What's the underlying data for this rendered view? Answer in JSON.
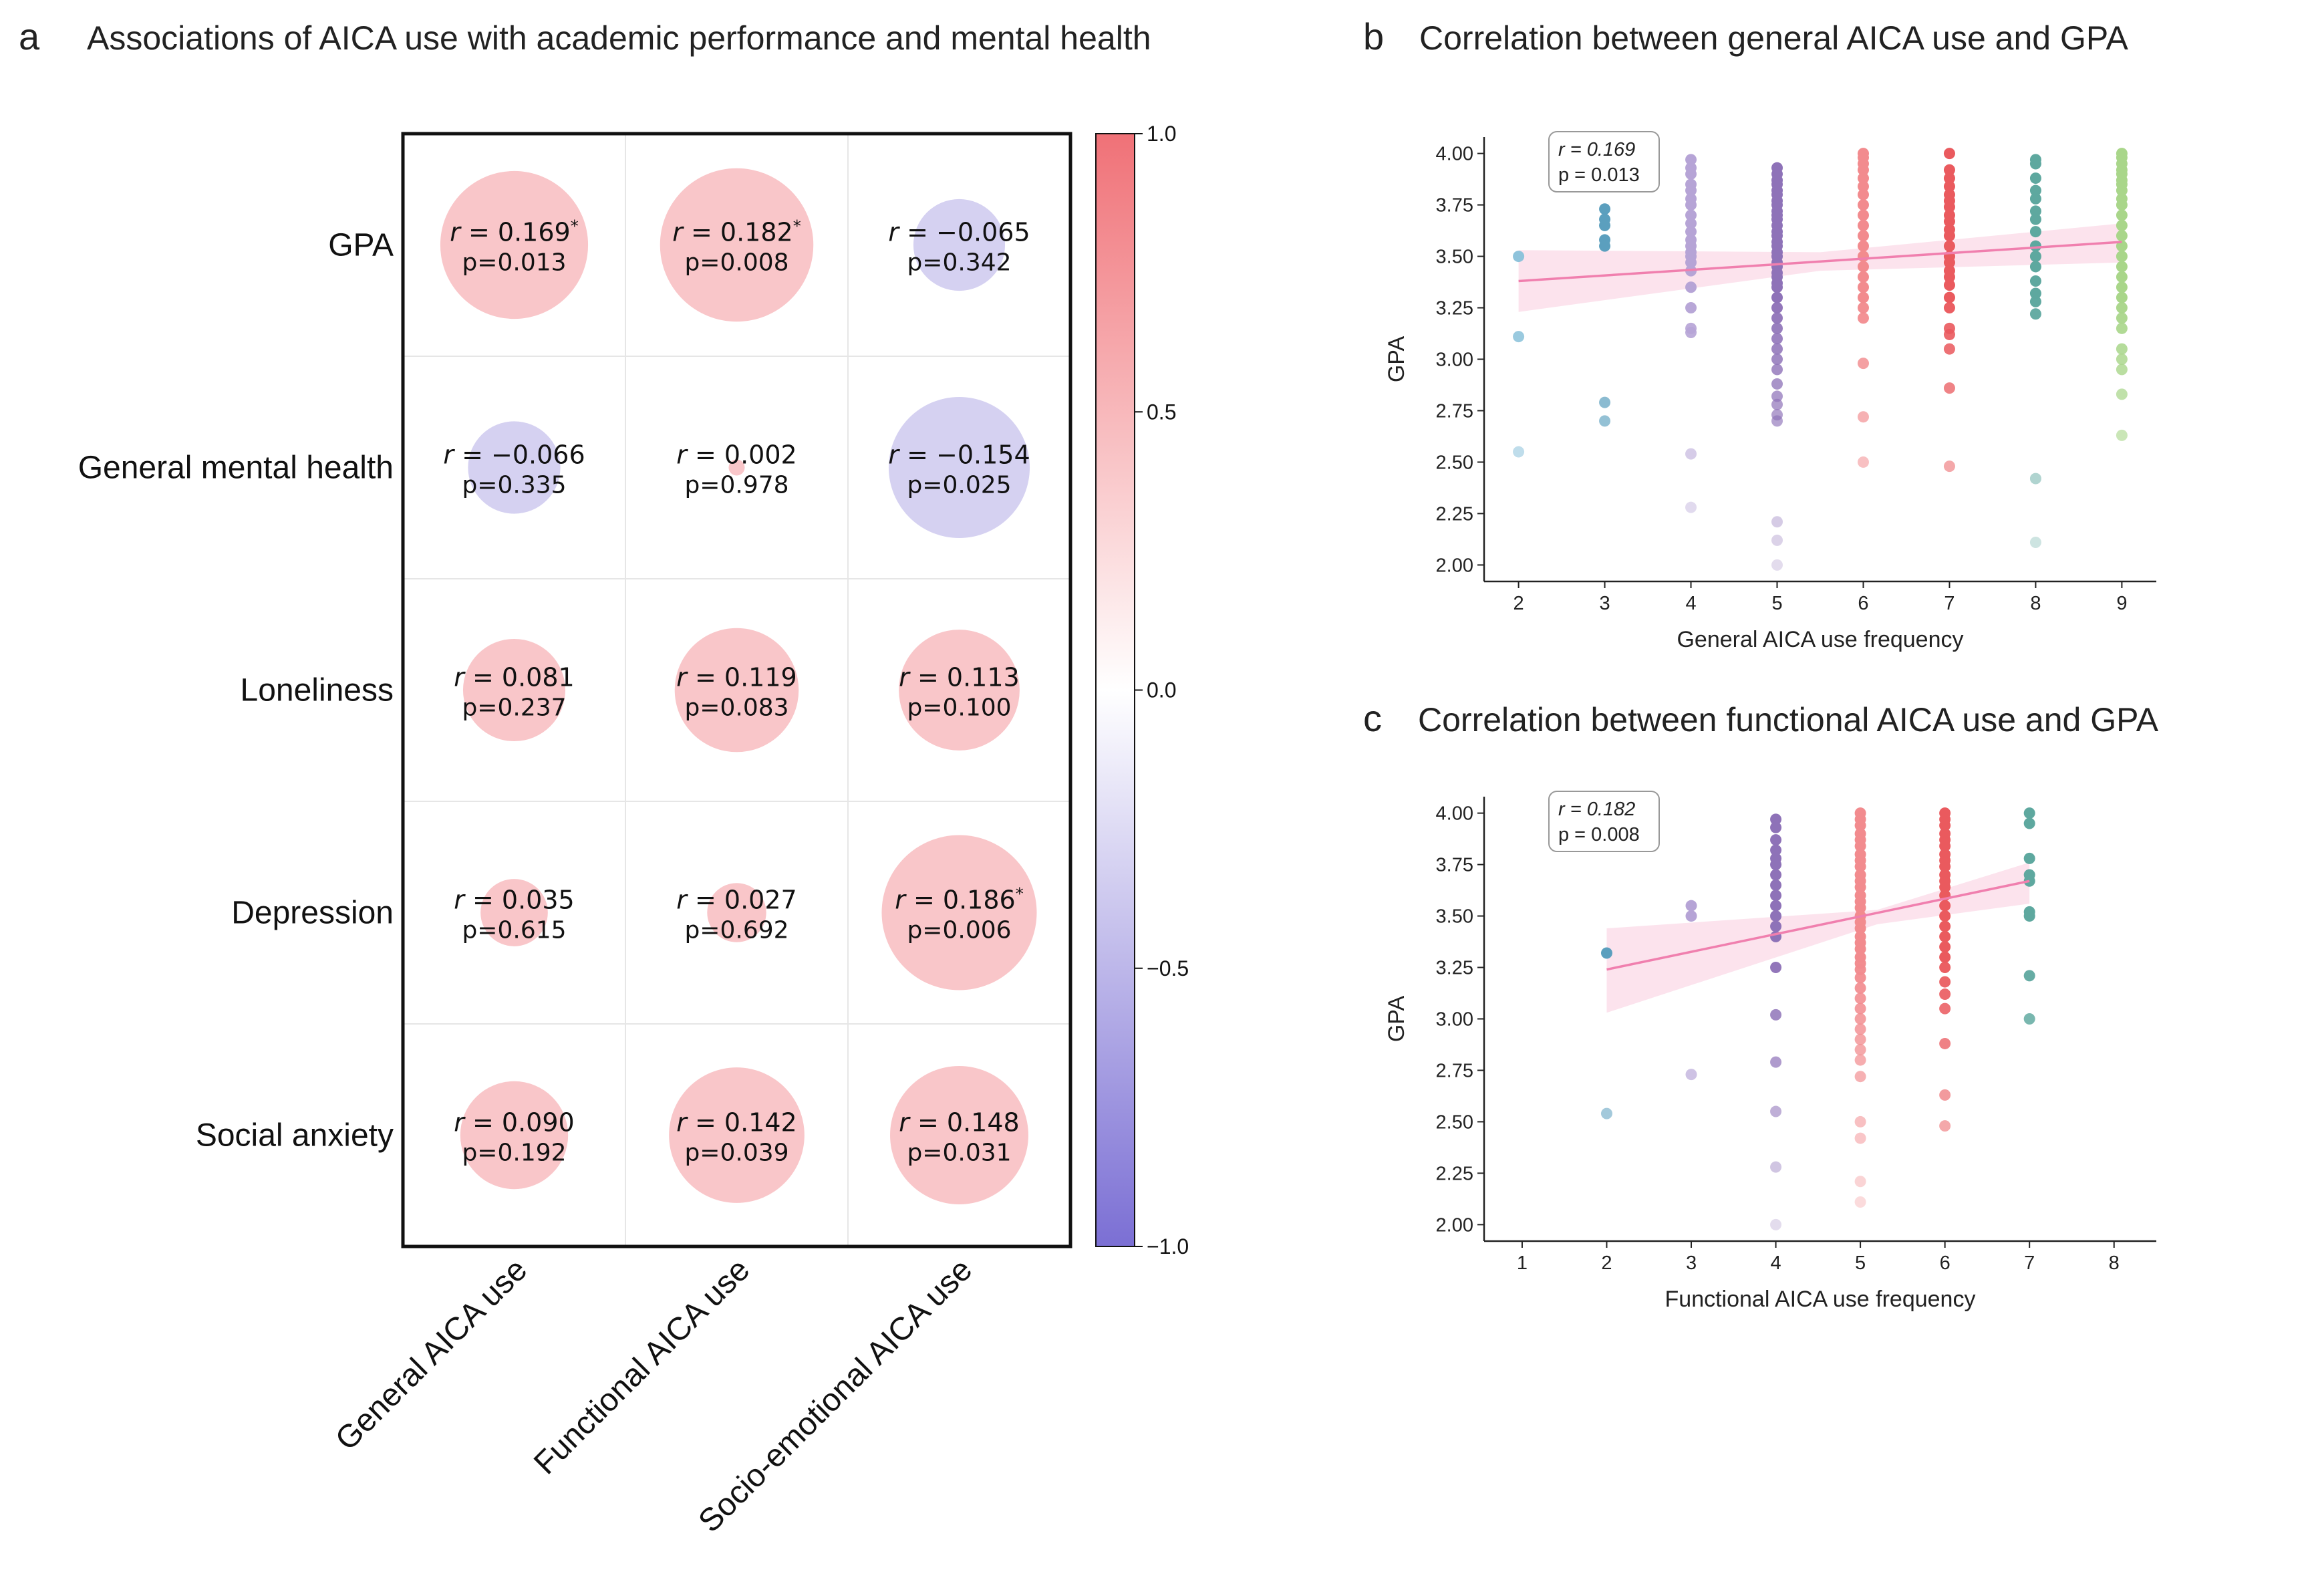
{
  "panel_a": {
    "letter": "a",
    "title": "Associations of AICA use with academic performance and mental health",
    "r_prefix": "r =",
    "p_prefix": "p=",
    "star": "*",
    "colorbar": {
      "ticks": [
        "1.0",
        "0.5",
        "0.0",
        "−0.5",
        "−1.0"
      ],
      "tick_values": [
        1.0,
        0.5,
        0.0,
        -0.5,
        -1.0
      ],
      "pos_color": "#f07177",
      "neg_color": "#7b6fd4",
      "mid_color": "#ffffff"
    }
  },
  "panel_b": {
    "letter": "b",
    "title": "Correlation between general AICA use and GPA",
    "stats": [
      "r = 0.169",
      "p = 0.013"
    ]
  },
  "panel_c": {
    "letter": "c",
    "title": "Correlation between functional AICA use and GPA",
    "stats": [
      "r = 0.182",
      "p = 0.008"
    ]
  },
  "chart_data": [
    {
      "type": "heatmap",
      "title": "Associations of AICA use with academic performance and mental health",
      "rows": [
        "GPA",
        "General mental health",
        "Loneliness",
        "Depression",
        "Social anxiety"
      ],
      "columns": [
        "General AICA use",
        "Functional AICA use",
        "Socio-emotional AICA use"
      ],
      "r": [
        [
          "0.169",
          "0.182",
          "−0.065"
        ],
        [
          "−0.066",
          "0.002",
          "−0.154"
        ],
        [
          "0.081",
          "0.119",
          "0.113"
        ],
        [
          "0.035",
          "0.027",
          "0.186"
        ],
        [
          "0.090",
          "0.142",
          "0.148"
        ]
      ],
      "r_values": [
        [
          0.169,
          0.182,
          -0.065
        ],
        [
          -0.066,
          0.002,
          -0.154
        ],
        [
          0.081,
          0.119,
          0.113
        ],
        [
          0.035,
          0.027,
          0.186
        ],
        [
          0.09,
          0.142,
          0.148
        ]
      ],
      "p": [
        [
          "0.013",
          "0.008",
          "0.342"
        ],
        [
          "0.335",
          "0.978",
          "0.025"
        ],
        [
          "0.237",
          "0.083",
          "0.100"
        ],
        [
          "0.615",
          "0.692",
          "0.006"
        ],
        [
          "0.192",
          "0.039",
          "0.031"
        ]
      ],
      "significant": [
        [
          true,
          true,
          false
        ],
        [
          false,
          false,
          false
        ],
        [
          false,
          false,
          false
        ],
        [
          false,
          false,
          true
        ],
        [
          false,
          false,
          false
        ]
      ],
      "colorbar_range": [
        -1.0,
        1.0
      ]
    },
    {
      "type": "scatter",
      "title": "Correlation between general AICA use and GPA",
      "xlabel": "General AICA use frequency",
      "ylabel": "GPA",
      "xlim": [
        1.6,
        9.4
      ],
      "ylim": [
        1.92,
        4.08
      ],
      "xticks": [
        "2",
        "3",
        "4",
        "5",
        "6",
        "7",
        "8",
        "9"
      ],
      "xtick_values": [
        2,
        3,
        4,
        5,
        6,
        7,
        8,
        9
      ],
      "yticks": [
        "2.00",
        "2.25",
        "2.50",
        "2.75",
        "3.00",
        "3.25",
        "3.50",
        "3.75",
        "4.00"
      ],
      "ytick_values": [
        2.0,
        2.25,
        2.5,
        2.75,
        3.0,
        3.25,
        3.5,
        3.75,
        4.0
      ],
      "group_colors": {
        "2": "#8ec3db",
        "3": "#5b9fbe",
        "4": "#b6a4d6",
        "5": "#8e72b8",
        "6": "#f28b8e",
        "7": "#ea5a5e",
        "8": "#5ea89f",
        "9": "#a9d68a"
      },
      "points": {
        "2": [
          3.5,
          3.11,
          2.55
        ],
        "3": [
          3.73,
          3.68,
          3.65,
          3.58,
          3.55,
          2.79,
          2.7
        ],
        "4": [
          3.97,
          3.93,
          3.9,
          3.85,
          3.82,
          3.78,
          3.75,
          3.7,
          3.66,
          3.62,
          3.58,
          3.55,
          3.52,
          3.5,
          3.47,
          3.43,
          3.35,
          3.25,
          3.15,
          3.13,
          2.54,
          2.28
        ],
        "5": [
          3.93,
          3.9,
          3.87,
          3.85,
          3.82,
          3.8,
          3.77,
          3.75,
          3.72,
          3.7,
          3.68,
          3.65,
          3.62,
          3.6,
          3.57,
          3.55,
          3.52,
          3.5,
          3.47,
          3.45,
          3.42,
          3.4,
          3.37,
          3.35,
          3.3,
          3.25,
          3.2,
          3.15,
          3.1,
          3.05,
          3.0,
          2.95,
          2.88,
          2.82,
          2.78,
          2.73,
          2.7,
          2.21,
          2.12,
          2.0
        ],
        "6": [
          4.0,
          3.98,
          3.95,
          3.92,
          3.88,
          3.84,
          3.8,
          3.75,
          3.7,
          3.65,
          3.6,
          3.55,
          3.5,
          3.45,
          3.4,
          3.35,
          3.3,
          3.25,
          3.2,
          2.98,
          2.72,
          2.5
        ],
        "7": [
          4.0,
          3.92,
          3.88,
          3.84,
          3.8,
          3.77,
          3.74,
          3.7,
          3.67,
          3.63,
          3.6,
          3.55,
          3.5,
          3.47,
          3.43,
          3.4,
          3.36,
          3.3,
          3.25,
          3.15,
          3.12,
          3.05,
          2.86,
          2.48
        ],
        "8": [
          3.97,
          3.95,
          3.88,
          3.82,
          3.78,
          3.72,
          3.68,
          3.62,
          3.55,
          3.5,
          3.45,
          3.38,
          3.32,
          3.28,
          3.22,
          2.42,
          2.11
        ],
        "9": [
          4.0,
          3.98,
          3.95,
          3.92,
          3.9,
          3.87,
          3.85,
          3.82,
          3.78,
          3.75,
          3.7,
          3.65,
          3.6,
          3.55,
          3.5,
          3.45,
          3.4,
          3.35,
          3.3,
          3.25,
          3.2,
          3.15,
          3.05,
          3.0,
          2.95,
          2.83,
          2.63
        ]
      },
      "fit": {
        "x0": 2,
        "y0": 3.38,
        "x1": 9,
        "y1": 3.57
      },
      "ci_upper": [
        [
          2,
          3.53
        ],
        [
          5.5,
          3.52
        ],
        [
          9,
          3.66
        ]
      ],
      "ci_lower": [
        [
          9,
          3.47
        ],
        [
          5.5,
          3.43
        ],
        [
          2,
          3.23
        ]
      ],
      "annotation": [
        "r = 0.169",
        "p = 0.013"
      ]
    },
    {
      "type": "scatter",
      "title": "Correlation between functional AICA use and GPA",
      "xlabel": "Functional AICA use frequency",
      "ylabel": "GPA",
      "xlim": [
        0.55,
        8.5
      ],
      "ylim": [
        1.92,
        4.08
      ],
      "xticks": [
        "1",
        "2",
        "3",
        "4",
        "5",
        "6",
        "7",
        "8"
      ],
      "xtick_values": [
        1,
        2,
        3,
        4,
        5,
        6,
        7,
        8
      ],
      "yticks": [
        "2.00",
        "2.25",
        "2.50",
        "2.75",
        "3.00",
        "3.25",
        "3.50",
        "3.75",
        "4.00"
      ],
      "ytick_values": [
        2.0,
        2.25,
        2.5,
        2.75,
        3.0,
        3.25,
        3.5,
        3.75,
        4.0
      ],
      "group_colors": {
        "2": "#5b9fbe",
        "3": "#b6a4d6",
        "4": "#8e72b8",
        "5": "#f28b8e",
        "6": "#ea5a5e",
        "7": "#5ea89f"
      },
      "points": {
        "2": [
          3.32,
          2.54
        ],
        "3": [
          3.55,
          3.5,
          2.73
        ],
        "4": [
          3.97,
          3.93,
          3.87,
          3.82,
          3.78,
          3.75,
          3.7,
          3.65,
          3.6,
          3.55,
          3.5,
          3.45,
          3.4,
          3.25,
          3.02,
          2.79,
          2.55,
          2.28,
          2.0
        ],
        "5": [
          4.0,
          3.97,
          3.94,
          3.9,
          3.87,
          3.84,
          3.8,
          3.77,
          3.74,
          3.7,
          3.67,
          3.64,
          3.6,
          3.57,
          3.54,
          3.5,
          3.47,
          3.44,
          3.4,
          3.37,
          3.34,
          3.3,
          3.27,
          3.24,
          3.2,
          3.15,
          3.1,
          3.05,
          3.0,
          2.95,
          2.9,
          2.85,
          2.8,
          2.72,
          2.5,
          2.42,
          2.21,
          2.11
        ],
        "6": [
          4.0,
          3.97,
          3.94,
          3.9,
          3.87,
          3.84,
          3.8,
          3.77,
          3.74,
          3.7,
          3.67,
          3.64,
          3.6,
          3.55,
          3.5,
          3.45,
          3.4,
          3.35,
          3.3,
          3.25,
          3.18,
          3.12,
          3.05,
          2.88,
          2.63,
          2.48
        ],
        "7": [
          4.0,
          3.95,
          3.78,
          3.7,
          3.67,
          3.52,
          3.5,
          3.21,
          3.0
        ]
      },
      "fit": {
        "x0": 2,
        "y0": 3.24,
        "x1": 7,
        "y1": 3.67
      },
      "ci_upper": [
        [
          2,
          3.44
        ],
        [
          5.2,
          3.53
        ],
        [
          7,
          3.76
        ]
      ],
      "ci_lower": [
        [
          7,
          3.56
        ],
        [
          5.2,
          3.46
        ],
        [
          2,
          3.03
        ]
      ],
      "annotation": [
        "r = 0.182",
        "p = 0.008"
      ]
    }
  ]
}
